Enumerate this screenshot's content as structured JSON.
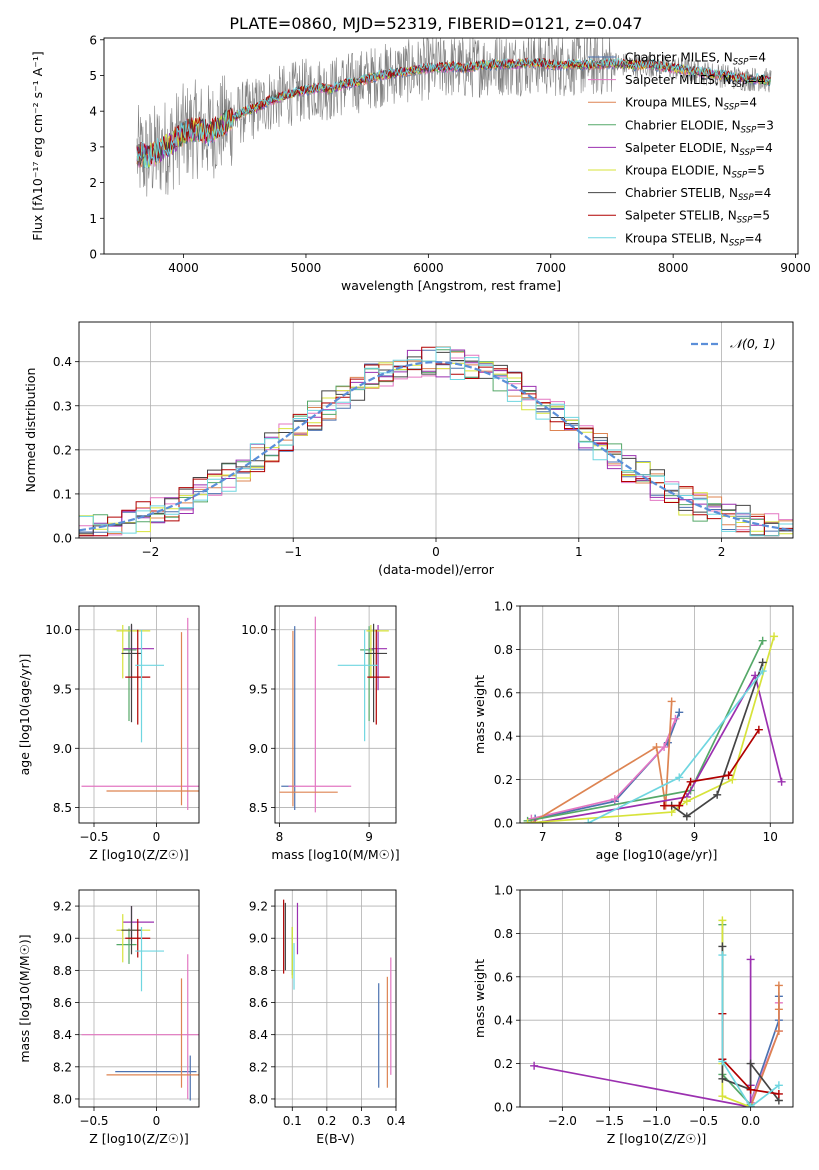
{
  "title": "PLATE=0860, MJD=52319, FIBERID=0121, z=0.047",
  "colors": {
    "Chabrier MILES": "#4c72b0",
    "Salpeter MILES": "#e377c2",
    "Kroupa MILES": "#dd8452",
    "Chabrier ELODIE": "#55a868",
    "Salpeter ELODIE": "#9b30b0",
    "Kroupa ELODIE": "#d7e33a",
    "Chabrier STELIB": "#444444",
    "Salpeter STELIB": "#b00000",
    "Kroupa STELIB": "#6fd6e0",
    "data": "#7f7f7f",
    "normal": "#5b8fd9",
    "grid": "#b0b0b0"
  },
  "chart_data": [
    {
      "type": "line",
      "title": "PLATE=0860, MJD=52319, FIBERID=0121, z=0.047",
      "xlabel": "wavelength [Angstrom, rest frame]",
      "ylabel": "Flux [fλ10⁻¹⁷ erg cm⁻² s⁻¹ A⁻¹]",
      "xlim": [
        3350,
        9020
      ],
      "ylim": [
        0,
        6.05
      ],
      "xticks": [
        4000,
        5000,
        6000,
        7000,
        8000,
        9000
      ],
      "yticks": [
        0,
        1,
        2,
        3,
        4,
        5,
        6
      ],
      "grid": false,
      "legend_position": "right",
      "legend": [
        "Chabrier MILES, N_SSP=4",
        "Salpeter MILES, N_SSP=4",
        "Kroupa MILES, N_SSP=4",
        "Chabrier ELODIE, N_SSP=3",
        "Salpeter ELODIE, N_SSP=4",
        "Kroupa ELODIE, N_SSP=5",
        "Chabrier STELIB, N_SSP=4",
        "Salpeter STELIB, N_SSP=5",
        "Kroupa STELIB, N_SSP=4"
      ],
      "continuum": {
        "x": [
          3620,
          3700,
          3800,
          3900,
          4000,
          4100,
          4200,
          4300,
          4400,
          4500,
          4600,
          4700,
          4800,
          4900,
          5000,
          5100,
          5200,
          5300,
          5400,
          5500,
          5600,
          5700,
          5800,
          5900,
          6000,
          6100,
          6200,
          6300,
          6400,
          6500,
          6600,
          6700,
          6800,
          6900,
          7000,
          7100,
          7200,
          7300,
          7400,
          7500,
          7600,
          7700,
          7800,
          7900,
          8000,
          8100,
          8200,
          8300,
          8400,
          8500,
          8600,
          8700,
          8800
        ],
        "y": [
          2.8,
          2.7,
          2.9,
          3.1,
          3.4,
          3.5,
          3.4,
          3.6,
          3.8,
          4.0,
          4.1,
          4.3,
          4.4,
          4.5,
          4.6,
          4.65,
          4.6,
          4.75,
          4.8,
          4.9,
          5.0,
          5.05,
          5.1,
          5.15,
          5.2,
          5.22,
          5.25,
          5.2,
          5.28,
          5.3,
          5.32,
          5.3,
          5.35,
          5.35,
          5.3,
          5.28,
          5.32,
          5.3,
          5.3,
          5.35,
          5.3,
          5.28,
          5.3,
          5.25,
          5.2,
          5.15,
          5.1,
          5.05,
          5.0,
          4.95,
          4.9,
          4.9,
          4.85
        ]
      }
    },
    {
      "type": "line",
      "xlabel": "(data-model)/error",
      "ylabel": "Normed distribution",
      "xlim": [
        -2.5,
        2.5
      ],
      "ylim": [
        0,
        0.49
      ],
      "xticks": [
        -2,
        -1,
        0,
        1,
        2
      ],
      "yticks": [
        0.0,
        0.1,
        0.2,
        0.3,
        0.4
      ],
      "grid": true,
      "legend": [
        "𝒩(0, 1)"
      ],
      "legend_position": "top-right",
      "bin_width": 0.1
    },
    {
      "type": "scatter",
      "xlabel": "Z [log10(Z/Z☉)]",
      "ylabel": "age  [log10(age/yr)]",
      "xlim": [
        -0.62,
        0.34
      ],
      "ylim": [
        8.37,
        10.2
      ],
      "xticks": [
        -0.5,
        0.0
      ],
      "yticks": [
        8.5,
        9.0,
        9.5,
        10.0
      ],
      "grid": true,
      "points": [
        {
          "model": "Salpeter MILES",
          "x": 0.25,
          "y": 8.68,
          "xerr": [
            0.85,
            0.1
          ],
          "yerr": [
            0.2,
            1.42
          ]
        },
        {
          "model": "Kroupa MILES",
          "x": 0.2,
          "y": 8.64,
          "xerr": [
            0.6,
            0.15
          ],
          "yerr": [
            0.12,
            1.34
          ]
        },
        {
          "model": "Chabrier ELODIE",
          "x": -0.22,
          "y": 9.83,
          "xerr": [
            0.05,
            0.06
          ],
          "yerr": [
            0.6,
            0.2
          ]
        },
        {
          "model": "Salpeter ELODIE",
          "x": -0.2,
          "y": 9.84,
          "xerr": [
            0.07,
            0.18
          ],
          "yerr": [
            0.35,
            0.2
          ]
        },
        {
          "model": "Kroupa ELODIE",
          "x": -0.27,
          "y": 9.99,
          "xerr": [
            0.05,
            0.22
          ],
          "yerr": [
            0.4,
            0.05
          ]
        },
        {
          "model": "Chabrier STELIB",
          "x": -0.2,
          "y": 9.8,
          "xerr": [
            0.08,
            0.08
          ],
          "yerr": [
            0.58,
            0.25
          ]
        },
        {
          "model": "Salpeter STELIB",
          "x": -0.15,
          "y": 9.6,
          "xerr": [
            0.1,
            0.1
          ],
          "yerr": [
            0.4,
            0.4
          ]
        },
        {
          "model": "Kroupa STELIB",
          "x": -0.12,
          "y": 9.7,
          "xerr": [
            0.05,
            0.18
          ],
          "yerr": [
            0.65,
            0.3
          ]
        }
      ]
    },
    {
      "type": "scatter",
      "xlabel": "mass [log10(M/M☉)]",
      "ylabel": "",
      "xlim": [
        7.95,
        9.3
      ],
      "ylim": [
        8.37,
        10.2
      ],
      "xticks": [
        8,
        9
      ],
      "yticks": [
        8.5,
        9.0,
        9.5,
        10.0
      ],
      "grid": true,
      "points": [
        {
          "model": "Chabrier MILES",
          "x": 8.17,
          "y": 8.68,
          "xerr": [
            0.15,
            0.01
          ],
          "yerr": [
            0.2,
            1.35
          ]
        },
        {
          "model": "Salpeter MILES",
          "x": 8.4,
          "y": 8.68,
          "xerr": [
            0.3,
            0.4
          ],
          "yerr": [
            0.22,
            1.43
          ]
        },
        {
          "model": "Kroupa MILES",
          "x": 8.15,
          "y": 8.63,
          "xerr": [
            0.15,
            0.5
          ],
          "yerr": [
            0.12,
            1.36
          ]
        },
        {
          "model": "Chabrier ELODIE",
          "x": 9.0,
          "y": 9.83,
          "xerr": [
            0.1,
            0.05
          ],
          "yerr": [
            0.6,
            0.2
          ]
        },
        {
          "model": "Salpeter ELODIE",
          "x": 9.1,
          "y": 9.84,
          "xerr": [
            0.1,
            0.1
          ],
          "yerr": [
            0.35,
            0.2
          ]
        },
        {
          "model": "Kroupa ELODIE",
          "x": 9.02,
          "y": 9.99,
          "xerr": [
            0.05,
            0.2
          ],
          "yerr": [
            0.4,
            0.05
          ]
        },
        {
          "model": "Chabrier STELIB",
          "x": 9.05,
          "y": 9.8,
          "xerr": [
            0.1,
            0.15
          ],
          "yerr": [
            0.58,
            0.25
          ]
        },
        {
          "model": "Salpeter STELIB",
          "x": 9.08,
          "y": 9.6,
          "xerr": [
            0.1,
            0.15
          ],
          "yerr": [
            0.4,
            0.4
          ]
        },
        {
          "model": "Kroupa STELIB",
          "x": 8.95,
          "y": 9.7,
          "xerr": [
            0.3,
            0.15
          ],
          "yerr": [
            0.64,
            0.3
          ]
        }
      ]
    },
    {
      "type": "line",
      "xlabel": "age  [log10(age/yr)]",
      "ylabel": "mass weight",
      "xlim": [
        6.7,
        10.3
      ],
      "ylim": [
        0,
        1.0
      ],
      "xticks": [
        7,
        8,
        9,
        10
      ],
      "yticks": [
        0.0,
        0.2,
        0.4,
        0.6,
        0.8,
        1.0
      ],
      "grid": true,
      "series": [
        {
          "model": "Chabrier MILES",
          "x": [
            6.9,
            7.95,
            8.65,
            8.8
          ],
          "y": [
            0.02,
            0.1,
            0.37,
            0.51
          ]
        },
        {
          "model": "Salpeter MILES",
          "x": [
            6.85,
            7.95,
            8.6,
            8.75
          ],
          "y": [
            0.02,
            0.11,
            0.35,
            0.48
          ]
        },
        {
          "model": "Kroupa MILES",
          "x": [
            6.85,
            8.5,
            8.62,
            8.7
          ],
          "y": [
            0.0,
            0.35,
            0.08,
            0.56
          ]
        },
        {
          "model": "Chabrier ELODIE",
          "x": [
            6.8,
            8.95,
            9.9
          ],
          "y": [
            0.01,
            0.15,
            0.84
          ]
        },
        {
          "model": "Salpeter ELODIE",
          "x": [
            6.9,
            8.9,
            9.8,
            10.15
          ],
          "y": [
            0.0,
            0.12,
            0.68,
            0.19
          ]
        },
        {
          "model": "Kroupa ELODIE",
          "x": [
            6.8,
            8.7,
            8.9,
            9.5,
            10.05
          ],
          "y": [
            0.0,
            0.05,
            0.1,
            0.2,
            0.86
          ]
        },
        {
          "model": "Chabrier STELIB",
          "x": [
            8.7,
            8.9,
            9.3,
            9.9
          ],
          "y": [
            0.08,
            0.03,
            0.13,
            0.74
          ]
        },
        {
          "model": "Salpeter STELIB",
          "x": [
            8.6,
            8.8,
            8.95,
            9.45,
            9.85
          ],
          "y": [
            0.08,
            0.08,
            0.19,
            0.22,
            0.43
          ]
        },
        {
          "model": "Kroupa STELIB",
          "x": [
            7.6,
            8.8,
            9.9
          ],
          "y": [
            0.0,
            0.21,
            0.7
          ]
        }
      ]
    },
    {
      "type": "scatter",
      "xlabel": "Z [log10(Z/Z☉)]",
      "ylabel": "mass [log10(M/M☉)]",
      "xlim": [
        -0.62,
        0.34
      ],
      "ylim": [
        7.95,
        9.3
      ],
      "xticks": [
        -0.5,
        0.0
      ],
      "yticks": [
        8.0,
        8.2,
        8.4,
        8.6,
        8.8,
        9.0,
        9.2
      ],
      "grid": true,
      "points": [
        {
          "model": "Chabrier MILES",
          "x": 0.27,
          "y": 8.17,
          "xerr": [
            0.6,
            0.05
          ],
          "yerr": [
            0.18,
            0.1
          ]
        },
        {
          "model": "Salpeter MILES",
          "x": 0.25,
          "y": 8.4,
          "xerr": [
            0.85,
            0.1
          ],
          "yerr": [
            0.4,
            0.5
          ]
        },
        {
          "model": "Kroupa MILES",
          "x": 0.2,
          "y": 8.15,
          "xerr": [
            0.6,
            0.15
          ],
          "yerr": [
            0.08,
            0.6
          ]
        },
        {
          "model": "Chabrier ELODIE",
          "x": -0.22,
          "y": 8.96,
          "xerr": [
            0.1,
            0.06
          ],
          "yerr": [
            0.12,
            0.1
          ]
        },
        {
          "model": "Salpeter ELODIE",
          "x": -0.2,
          "y": 9.1,
          "xerr": [
            0.07,
            0.18
          ],
          "yerr": [
            0.12,
            0.1
          ]
        },
        {
          "model": "Kroupa ELODIE",
          "x": -0.27,
          "y": 9.05,
          "xerr": [
            0.05,
            0.22
          ],
          "yerr": [
            0.2,
            0.1
          ]
        },
        {
          "model": "Chabrier STELIB",
          "x": -0.2,
          "y": 9.05,
          "xerr": [
            0.08,
            0.08
          ],
          "yerr": [
            0.15,
            0.15
          ]
        },
        {
          "model": "Salpeter STELIB",
          "x": -0.15,
          "y": 9.0,
          "xerr": [
            0.1,
            0.1
          ],
          "yerr": [
            0.12,
            0.12
          ]
        },
        {
          "model": "Kroupa STELIB",
          "x": -0.12,
          "y": 8.92,
          "xerr": [
            0.05,
            0.18
          ],
          "yerr": [
            0.25,
            0.15
          ]
        }
      ]
    },
    {
      "type": "scatter",
      "xlabel": "E(B-V)",
      "ylabel": "",
      "xlim": [
        0.05,
        0.4
      ],
      "ylim": [
        7.95,
        9.3
      ],
      "xticks": [
        0.1,
        0.2,
        0.3,
        0.4
      ],
      "yticks": [
        8.0,
        8.2,
        8.4,
        8.6,
        8.8,
        9.0,
        9.2
      ],
      "grid": true,
      "points": [
        {
          "model": "Chabrier MILES",
          "x": 0.35,
          "y": 8.4,
          "yerr": [
            0.33,
            0.32
          ]
        },
        {
          "model": "Salpeter MILES",
          "x": 0.385,
          "y": 8.5,
          "yerr": [
            0.35,
            0.38
          ]
        },
        {
          "model": "Kroupa MILES",
          "x": 0.375,
          "y": 8.4,
          "yerr": [
            0.33,
            0.36
          ]
        },
        {
          "model": "Chabrier ELODIE",
          "x": 0.1,
          "y": 8.95,
          "yerr": [
            0.18,
            0.12
          ]
        },
        {
          "model": "Salpeter ELODIE",
          "x": 0.115,
          "y": 9.1,
          "yerr": [
            0.2,
            0.12
          ]
        },
        {
          "model": "Kroupa ELODIE",
          "x": 0.1,
          "y": 8.95,
          "yerr": [
            0.2,
            0.12
          ]
        },
        {
          "model": "Chabrier STELIB",
          "x": 0.08,
          "y": 9.0,
          "yerr": [
            0.2,
            0.22
          ]
        },
        {
          "model": "Salpeter STELIB",
          "x": 0.075,
          "y": 9.0,
          "yerr": [
            0.22,
            0.24
          ]
        },
        {
          "model": "Kroupa STELIB",
          "x": 0.105,
          "y": 8.85,
          "yerr": [
            0.17,
            0.12
          ]
        }
      ]
    },
    {
      "type": "line",
      "xlabel": "Z [log10(Z/Z☉)]",
      "ylabel": "mass weight",
      "xlim": [
        -2.45,
        0.45
      ],
      "ylim": [
        0,
        1.0
      ],
      "xticks": [
        -2.0,
        -1.5,
        -1.0,
        -0.5,
        0.0
      ],
      "yticks": [
        0.0,
        0.2,
        0.4,
        0.6,
        0.8,
        1.0
      ],
      "grid": true,
      "series": [
        {
          "model": "Chabrier MILES",
          "x": [
            0.0,
            0.3,
            0.3
          ],
          "y": [
            0.02,
            0.4,
            0.51
          ]
        },
        {
          "model": "Salpeter MILES",
          "x": [
            0.0,
            0.3,
            0.3
          ],
          "y": [
            0.02,
            0.35,
            0.48
          ]
        },
        {
          "model": "Kroupa MILES",
          "x": [
            0.0,
            0.3,
            0.3,
            0.3
          ],
          "y": [
            0.0,
            0.35,
            0.45,
            0.56
          ]
        },
        {
          "model": "Chabrier ELODIE",
          "x": [
            -0.3,
            -0.3,
            0.0
          ],
          "y": [
            0.84,
            0.15,
            0.01
          ]
        },
        {
          "model": "Salpeter ELODIE",
          "x": [
            -2.3,
            0.0,
            0.0,
            0.0
          ],
          "y": [
            0.19,
            0.0,
            0.1,
            0.68
          ]
        },
        {
          "model": "Kroupa ELODIE",
          "x": [
            -0.3,
            -0.3,
            -0.3,
            0.0
          ],
          "y": [
            0.86,
            0.2,
            0.05,
            0.0
          ]
        },
        {
          "model": "Chabrier STELIB",
          "x": [
            -0.3,
            -0.3,
            0.0,
            0.0,
            0.3
          ],
          "y": [
            0.74,
            0.13,
            0.08,
            0.2,
            0.03
          ]
        },
        {
          "model": "Salpeter STELIB",
          "x": [
            -0.3,
            -0.3,
            0.0,
            0.3
          ],
          "y": [
            0.43,
            0.22,
            0.08,
            0.06
          ]
        },
        {
          "model": "Kroupa STELIB",
          "x": [
            -0.3,
            -0.3,
            0.0,
            0.3
          ],
          "y": [
            0.7,
            0.21,
            0.0,
            0.1
          ]
        }
      ]
    }
  ]
}
